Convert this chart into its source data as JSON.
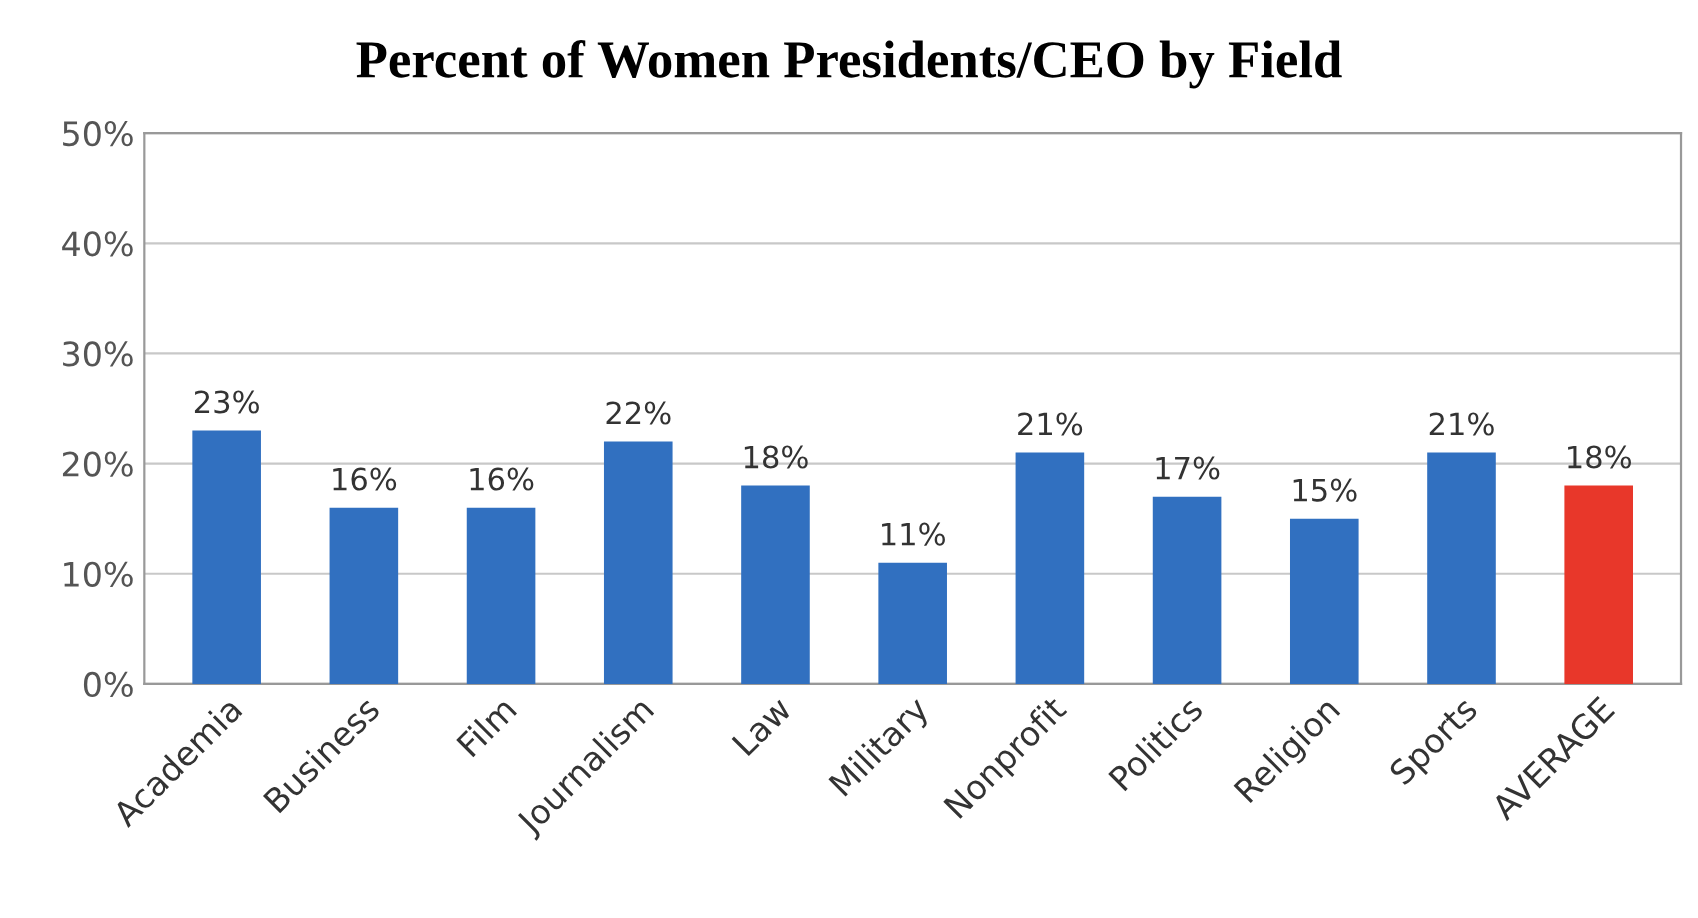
{
  "chart_data": {
    "type": "bar",
    "title": "Percent of Women Presidents/CEO by Field",
    "categories": [
      "Academia",
      "Business",
      "Film",
      "Journalism",
      "Law",
      "Military",
      "Nonprofit",
      "Politics",
      "Religion",
      "Sports",
      "AVERAGE"
    ],
    "values": [
      23,
      16,
      16,
      22,
      18,
      11,
      21,
      17,
      15,
      21,
      18
    ],
    "colors": [
      "#3170c0",
      "#3170c0",
      "#3170c0",
      "#3170c0",
      "#3170c0",
      "#3170c0",
      "#3170c0",
      "#3170c0",
      "#3170c0",
      "#3170c0",
      "#e8372a"
    ],
    "value_labels": [
      "23%",
      "16%",
      "16%",
      "22%",
      "18%",
      "11%",
      "21%",
      "17%",
      "15%",
      "21%",
      "18%"
    ],
    "ylim": [
      0,
      50
    ],
    "yticks": [
      {
        "value": 0,
        "label": "0%"
      },
      {
        "value": 10,
        "label": "10%"
      },
      {
        "value": 20,
        "label": "20%"
      },
      {
        "value": 30,
        "label": "30%"
      },
      {
        "value": 40,
        "label": "40%"
      },
      {
        "value": 50,
        "label": "50%"
      }
    ],
    "grid": "y",
    "legend": false
  }
}
